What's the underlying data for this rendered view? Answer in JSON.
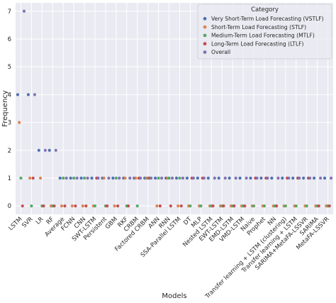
{
  "chart_data": {
    "type": "scatter",
    "title": "",
    "xlabel": "Models",
    "ylabel": "Frequency",
    "ylim": [
      -0.3,
      7.3
    ],
    "yticks": [
      0,
      1,
      2,
      3,
      4,
      5,
      6,
      7
    ],
    "grid": true,
    "legend_title": "Category",
    "legend_position": "top-right",
    "categories": [
      "LSTM",
      "SVR",
      "LR",
      "RF",
      "Average",
      "FCNN",
      "CNN",
      "SWT-LSTM",
      "Persistent",
      "GBM",
      "RKF",
      "CRBM",
      "Factored CRBM",
      "ANN",
      "RNN",
      "SSA-Parallel LSTM",
      "DT",
      "MLP",
      "Nested LSTM",
      "EWT-LSTM",
      "EMD-LSTM",
      "VMD-LSTM",
      "Naive",
      "Prophet",
      "NN",
      "Transfer learning + LSTM (clustering)",
      "Transfer learning + LSTM",
      "SARIMA+MetaFA-LSSVR",
      "SARIMA",
      "MetaFA-LSSVR"
    ],
    "series": [
      {
        "name": "Very Short-Term Load Forecasting (VSTLF)",
        "color": "#4c72b0",
        "values": [
          4,
          4,
          2,
          2,
          1,
          1,
          1,
          1,
          1,
          1,
          1,
          1,
          1,
          1,
          1,
          1,
          1,
          1,
          1,
          1,
          1,
          1,
          1,
          1,
          1,
          1,
          1,
          1,
          1,
          1
        ]
      },
      {
        "name": "Short-Term Load Forecasting (STLF)",
        "color": "#dd8452",
        "values": [
          3,
          1,
          1,
          0,
          0,
          0,
          0,
          0,
          1,
          0,
          1,
          1,
          1,
          0,
          1,
          0,
          0,
          0,
          0,
          0,
          0,
          0,
          0,
          0,
          0,
          0,
          0,
          0,
          0,
          0
        ]
      },
      {
        "name": "Medium-Term Load Forecasting (MTLF)",
        "color": "#55a868",
        "values": [
          1,
          0,
          0,
          0,
          1,
          1,
          1,
          0,
          0,
          1,
          0,
          0,
          1,
          1,
          1,
          1,
          0,
          0,
          0,
          0,
          0,
          0,
          0,
          0,
          0,
          0,
          0,
          0,
          0,
          0
        ]
      },
      {
        "name": "Long-Term Load Forecasting (LTLF)",
        "color": "#c44e52",
        "values": [
          0,
          1,
          0,
          0,
          0,
          0,
          0,
          1,
          0,
          0,
          0,
          1,
          1,
          0,
          0,
          0,
          1,
          1,
          0,
          0,
          0,
          0,
          1,
          1,
          0,
          1,
          1,
          1,
          0,
          0
        ]
      },
      {
        "name": "Overall",
        "color": "#8172b3",
        "values": [
          7,
          4,
          2,
          2,
          1,
          1,
          1,
          1,
          1,
          1,
          1,
          1,
          1,
          1,
          1,
          1,
          1,
          1,
          1,
          1,
          1,
          1,
          1,
          1,
          1,
          1,
          1,
          1,
          1,
          1
        ]
      }
    ]
  }
}
